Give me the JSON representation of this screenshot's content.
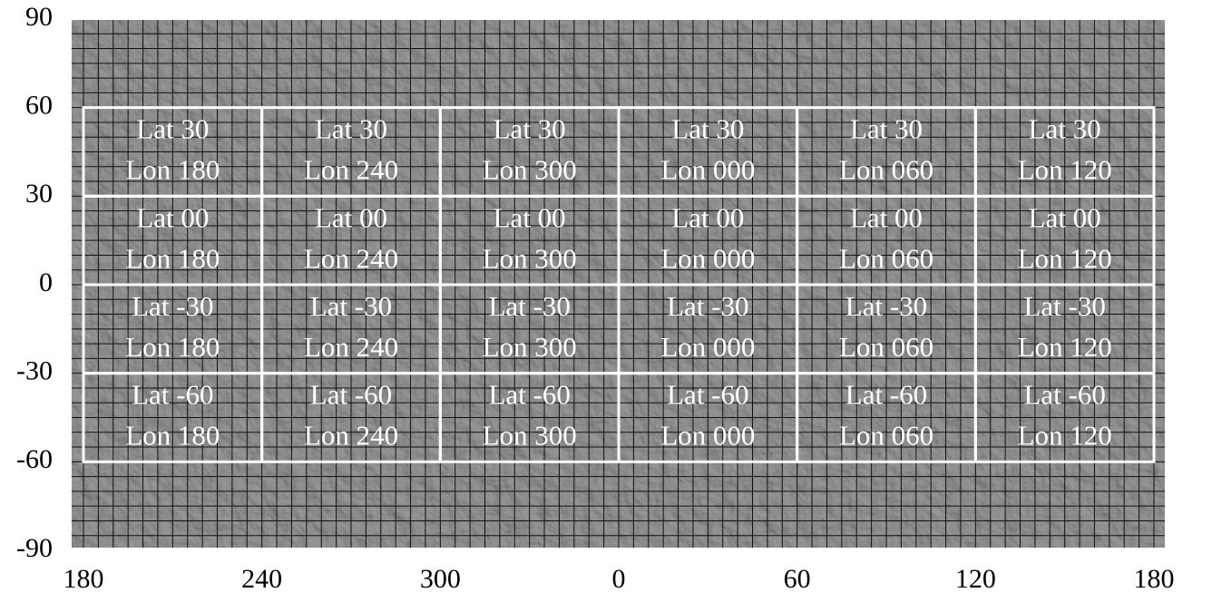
{
  "lat_ticks": [
    90,
    60,
    30,
    0,
    -30,
    -60,
    -90
  ],
  "lon_ticks": [
    180,
    240,
    300,
    0,
    60,
    120,
    180
  ],
  "tiles": [
    [
      {
        "lat": "Lat 30",
        "lon": "Lon 180"
      },
      {
        "lat": "Lat 30",
        "lon": "Lon 240"
      },
      {
        "lat": "Lat 30",
        "lon": "Lon 300"
      },
      {
        "lat": "Lat 30",
        "lon": "Lon 000"
      },
      {
        "lat": "Lat 30",
        "lon": "Lon 060"
      },
      {
        "lat": "Lat 30",
        "lon": "Lon 120"
      }
    ],
    [
      {
        "lat": "Lat 00",
        "lon": "Lon 180"
      },
      {
        "lat": "Lat 00",
        "lon": "Lon 240"
      },
      {
        "lat": "Lat 00",
        "lon": "Lon 300"
      },
      {
        "lat": "Lat 00",
        "lon": "Lon 000"
      },
      {
        "lat": "Lat 00",
        "lon": "Lon 060"
      },
      {
        "lat": "Lat 00",
        "lon": "Lon 120"
      }
    ],
    [
      {
        "lat": "Lat -30",
        "lon": "Lon 180"
      },
      {
        "lat": "Lat -30",
        "lon": "Lon 240"
      },
      {
        "lat": "Lat -30",
        "lon": "Lon 300"
      },
      {
        "lat": "Lat -30",
        "lon": "Lon 000"
      },
      {
        "lat": "Lat -30",
        "lon": "Lon 060"
      },
      {
        "lat": "Lat -30",
        "lon": "Lon 120"
      }
    ],
    [
      {
        "lat": "Lat -60",
        "lon": "Lon 180"
      },
      {
        "lat": "Lat -60",
        "lon": "Lon 240"
      },
      {
        "lat": "Lat -60",
        "lon": "Lon 300"
      },
      {
        "lat": "Lat -60",
        "lon": "Lon 000"
      },
      {
        "lat": "Lat -60",
        "lon": "Lon 060"
      },
      {
        "lat": "Lat -60",
        "lon": "Lon 120"
      }
    ]
  ]
}
